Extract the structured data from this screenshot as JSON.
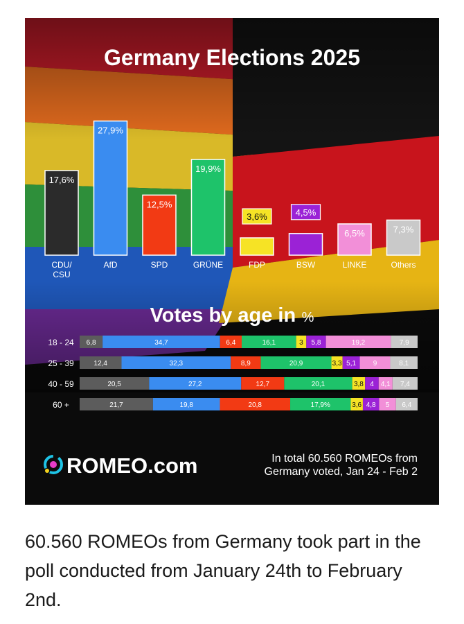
{
  "title": "Germany Elections 2025",
  "age_section_title_main": "Votes by age in",
  "age_section_title_unit": "%",
  "brand": {
    "name": "ROMEO.com",
    "logo_icon": "romeo-logo-icon"
  },
  "footnote": [
    "In total 60.560 ROMEOs from",
    "Germany voted, Jan 24 - Feb 2"
  ],
  "caption": "60.560 ROMEOs from Germany took part in the poll conducted from January 24th to February 2nd.",
  "colors": {
    "CDU/CSU": "#2b2b2b",
    "AfD": "#3a8cf0",
    "SPD": "#f23a14",
    "GRÜNE": "#1ec36a",
    "FDP": "#f6e325",
    "BSW": "#9b22d6",
    "LINKE": "#f28fd8",
    "Others": "#c9c9c9"
  },
  "chart_data": [
    {
      "type": "bar",
      "title": "Germany Elections 2025",
      "categories": [
        "CDU/CSU",
        "AfD",
        "SPD",
        "GRÜNE",
        "FDP",
        "BSW",
        "LINKE",
        "Others"
      ],
      "category_labels": [
        [
          "CDU/",
          "CSU"
        ],
        [
          "AfD"
        ],
        [
          "SPD"
        ],
        [
          "GRÜNE"
        ],
        [
          "FDP"
        ],
        [
          "BSW"
        ],
        [
          "LINKE"
        ],
        [
          "Others"
        ]
      ],
      "values": [
        17.6,
        27.9,
        12.5,
        19.9,
        3.6,
        4.5,
        6.5,
        7.3
      ],
      "value_labels": [
        "17,6%",
        "27,9%",
        "12,5%",
        "19,9%",
        "3,6%",
        "4,5%",
        "6,5%",
        "7,3%"
      ],
      "ylim": [
        0,
        30
      ],
      "grid": false,
      "legend": "none"
    },
    {
      "type": "bar",
      "stacked": true,
      "orientation": "horizontal",
      "title": "Votes by age in %",
      "categories": [
        "18 - 24",
        "25 - 39",
        "40 - 59",
        "60 +"
      ],
      "series": [
        {
          "name": "CDU/CSU",
          "values": [
            6.8,
            12.4,
            20.5,
            21.7
          ],
          "labels": [
            "6,8",
            "12,4",
            "20,5",
            "21,7"
          ]
        },
        {
          "name": "AfD",
          "values": [
            34.7,
            32.3,
            27.2,
            19.8
          ],
          "labels": [
            "34,7",
            "32,3",
            "27,2",
            "19,8"
          ]
        },
        {
          "name": "SPD",
          "values": [
            6.4,
            8.9,
            12.7,
            20.8
          ],
          "labels": [
            "6,4",
            "8,9",
            "12,7",
            "20,8"
          ]
        },
        {
          "name": "GRÜNE",
          "values": [
            16.1,
            20.9,
            20.1,
            17.9
          ],
          "labels": [
            "16,1",
            "20,9",
            "20,1",
            "17,9%"
          ]
        },
        {
          "name": "FDP",
          "values": [
            3,
            3.3,
            3.8,
            3.6
          ],
          "labels": [
            "3",
            "3,3",
            "3,8",
            "3,6"
          ]
        },
        {
          "name": "BSW",
          "values": [
            5.8,
            5.1,
            4,
            4.8
          ],
          "labels": [
            "5,8",
            "5,1",
            "4",
            "4,8"
          ]
        },
        {
          "name": "LINKE",
          "values": [
            19.2,
            9,
            4.1,
            5
          ],
          "labels": [
            "19,2",
            "9",
            "4,1",
            "5"
          ]
        },
        {
          "name": "Others",
          "values": [
            7.9,
            8.1,
            7.4,
            6.4
          ],
          "labels": [
            "7,9",
            "8,1",
            "7,4",
            "6,4"
          ]
        }
      ],
      "legend": "none"
    }
  ]
}
